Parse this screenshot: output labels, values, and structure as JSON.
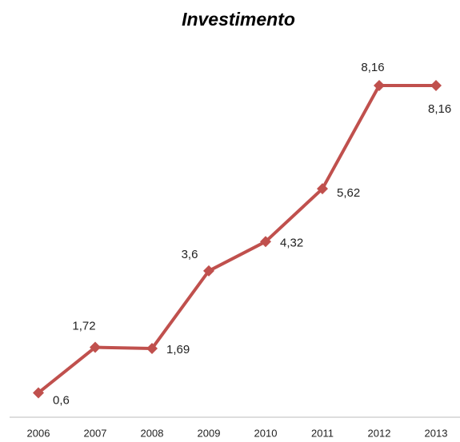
{
  "chart_data": {
    "type": "line",
    "title": "Investimento",
    "categories": [
      "2006",
      "2007",
      "2008",
      "2009",
      "2010",
      "2011",
      "2012",
      "2013"
    ],
    "values": [
      0.6,
      1.72,
      1.69,
      3.6,
      4.32,
      5.62,
      8.16,
      8.16
    ],
    "value_labels": [
      "0,6",
      "1,72",
      "1,69",
      "3,6",
      "4,32",
      "5,62",
      "8,16",
      "8,16"
    ],
    "color": "#c0504d",
    "grid": false
  }
}
